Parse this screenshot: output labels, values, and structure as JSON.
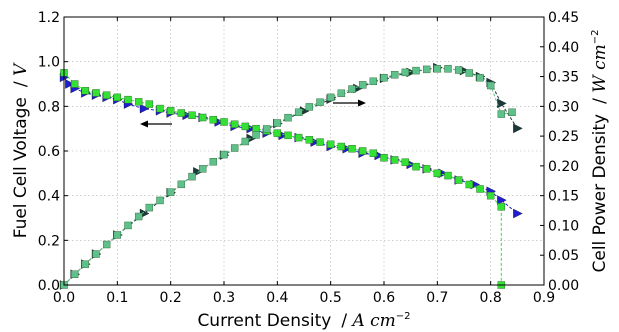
{
  "chart_data": {
    "type": "scatter",
    "xlabel": "Current Density",
    "xlabel_unit": "A cm",
    "xlabel_unit_exp": "−2",
    "ylabel_left": "Fuel Cell Voltage",
    "ylabel_left_unit": "V",
    "ylabel_right": "Cell Power Density",
    "ylabel_right_unit": "W cm",
    "ylabel_right_unit_exp": "−2",
    "xlim": [
      0,
      0.9
    ],
    "ylim_left": [
      0,
      1.2
    ],
    "ylim_right": [
      0,
      0.45
    ],
    "xticks": [
      "0.0",
      "0.1",
      "0.2",
      "0.3",
      "0.4",
      "0.5",
      "0.6",
      "0.7",
      "0.8",
      "0.9"
    ],
    "yticks_left": [
      "0.0",
      "0.2",
      "0.4",
      "0.6",
      "0.8",
      "1.0",
      "1.2"
    ],
    "yticks_right": [
      "0.00",
      "0.05",
      "0.10",
      "0.15",
      "0.20",
      "0.25",
      "0.30",
      "0.35",
      "0.40",
      "0.45"
    ],
    "grid": true,
    "colors": {
      "voltage_triangle": "#1f1fcf",
      "voltage_square": "#33e033",
      "power_triangle": "#1a3a3a",
      "power_square": "#5ec08a"
    },
    "series": [
      {
        "axis": "left",
        "marker": "triangle",
        "color_key": "voltage_triangle",
        "x": [
          0.0,
          0.01,
          0.02,
          0.04,
          0.06,
          0.08,
          0.1,
          0.12,
          0.15,
          0.18,
          0.2,
          0.23,
          0.26,
          0.29,
          0.32,
          0.35,
          0.38,
          0.41,
          0.44,
          0.47,
          0.5,
          0.53,
          0.56,
          0.59,
          0.62,
          0.65,
          0.68,
          0.71,
          0.74,
          0.77,
          0.8,
          0.82,
          0.85
        ],
        "y": [
          0.93,
          0.9,
          0.88,
          0.86,
          0.85,
          0.84,
          0.83,
          0.81,
          0.79,
          0.78,
          0.77,
          0.76,
          0.75,
          0.73,
          0.71,
          0.7,
          0.68,
          0.67,
          0.66,
          0.64,
          0.62,
          0.61,
          0.59,
          0.58,
          0.56,
          0.54,
          0.52,
          0.5,
          0.47,
          0.45,
          0.42,
          0.38,
          0.32
        ]
      },
      {
        "axis": "left",
        "marker": "square",
        "color_key": "voltage_square",
        "x": [
          0.0,
          0.02,
          0.04,
          0.06,
          0.08,
          0.1,
          0.12,
          0.14,
          0.16,
          0.18,
          0.2,
          0.22,
          0.24,
          0.26,
          0.28,
          0.3,
          0.32,
          0.34,
          0.36,
          0.38,
          0.4,
          0.42,
          0.44,
          0.46,
          0.48,
          0.5,
          0.52,
          0.54,
          0.56,
          0.58,
          0.6,
          0.62,
          0.64,
          0.66,
          0.68,
          0.7,
          0.72,
          0.74,
          0.76,
          0.78,
          0.8,
          0.82,
          0.82
        ],
        "y": [
          0.95,
          0.9,
          0.87,
          0.86,
          0.85,
          0.84,
          0.83,
          0.82,
          0.81,
          0.79,
          0.78,
          0.77,
          0.76,
          0.75,
          0.74,
          0.73,
          0.72,
          0.71,
          0.7,
          0.69,
          0.68,
          0.67,
          0.66,
          0.65,
          0.64,
          0.63,
          0.62,
          0.61,
          0.6,
          0.59,
          0.57,
          0.56,
          0.55,
          0.53,
          0.52,
          0.5,
          0.49,
          0.47,
          0.45,
          0.43,
          0.4,
          0.35,
          0.0
        ]
      },
      {
        "axis": "right",
        "marker": "triangle",
        "color_key": "power_triangle",
        "x": [
          0.0,
          0.02,
          0.04,
          0.06,
          0.1,
          0.15,
          0.2,
          0.25,
          0.3,
          0.35,
          0.4,
          0.45,
          0.5,
          0.55,
          0.6,
          0.65,
          0.7,
          0.75,
          0.78,
          0.8,
          0.82,
          0.85
        ],
        "y": [
          0.0,
          0.018,
          0.035,
          0.052,
          0.084,
          0.12,
          0.155,
          0.19,
          0.218,
          0.246,
          0.271,
          0.292,
          0.312,
          0.33,
          0.347,
          0.357,
          0.365,
          0.36,
          0.35,
          0.34,
          0.305,
          0.263
        ]
      },
      {
        "axis": "right",
        "marker": "square",
        "color_key": "power_square",
        "x": [
          0.0,
          0.02,
          0.04,
          0.06,
          0.08,
          0.1,
          0.12,
          0.14,
          0.16,
          0.18,
          0.2,
          0.22,
          0.24,
          0.26,
          0.28,
          0.3,
          0.32,
          0.34,
          0.36,
          0.38,
          0.4,
          0.42,
          0.44,
          0.46,
          0.48,
          0.5,
          0.52,
          0.54,
          0.56,
          0.58,
          0.6,
          0.62,
          0.64,
          0.66,
          0.68,
          0.7,
          0.72,
          0.74,
          0.76,
          0.78,
          0.8,
          0.82,
          0.84
        ],
        "y": [
          0.0,
          0.018,
          0.035,
          0.052,
          0.068,
          0.084,
          0.1,
          0.115,
          0.13,
          0.142,
          0.156,
          0.169,
          0.182,
          0.195,
          0.207,
          0.219,
          0.23,
          0.241,
          0.252,
          0.262,
          0.272,
          0.281,
          0.29,
          0.299,
          0.307,
          0.315,
          0.322,
          0.329,
          0.336,
          0.342,
          0.348,
          0.353,
          0.357,
          0.36,
          0.362,
          0.363,
          0.363,
          0.361,
          0.356,
          0.348,
          0.335,
          0.287,
          0.29
        ]
      }
    ]
  }
}
